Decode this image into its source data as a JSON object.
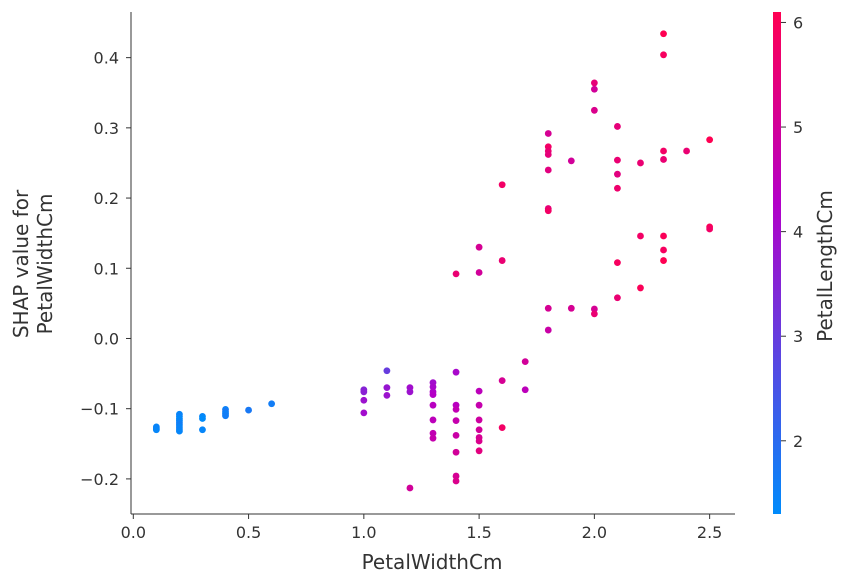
{
  "chart_data": {
    "type": "scatter",
    "title": "",
    "xlabel": "PetalWidthCm",
    "ylabel_lines": [
      "SHAP value for",
      "PetalWidthCm"
    ],
    "colorbar_label": "PetalLengthCm",
    "xlim": [
      -0.01,
      2.61
    ],
    "ylim": [
      -0.25,
      0.465
    ],
    "xticks": [
      "0.0",
      "0.5",
      "1.0",
      "1.5",
      "2.0",
      "2.5"
    ],
    "xtick_values": [
      0.0,
      0.5,
      1.0,
      1.5,
      2.0,
      2.5
    ],
    "yticks": [
      "−0.2",
      "−0.1",
      "0.0",
      "0.1",
      "0.2",
      "0.3",
      "0.4"
    ],
    "ytick_values": [
      -0.2,
      -0.1,
      0.0,
      0.1,
      0.2,
      0.3,
      0.4
    ],
    "colorbar_range": [
      1.3,
      6.1
    ],
    "colorbar_ticks": [
      "2",
      "3",
      "4",
      "5",
      "6"
    ],
    "colorbar_tick_values": [
      2,
      3,
      4,
      5,
      6
    ],
    "colormap": [
      "#008bfb",
      "#ff0052"
    ],
    "grid": false,
    "points": [
      {
        "x": 0.1,
        "y": -0.126,
        "c": 1.4
      },
      {
        "x": 0.1,
        "y": -0.128,
        "c": 1.5
      },
      {
        "x": 0.1,
        "y": -0.13,
        "c": 1.4
      },
      {
        "x": 0.2,
        "y": -0.108,
        "c": 1.4
      },
      {
        "x": 0.2,
        "y": -0.111,
        "c": 1.5
      },
      {
        "x": 0.2,
        "y": -0.114,
        "c": 1.3
      },
      {
        "x": 0.2,
        "y": -0.117,
        "c": 1.4
      },
      {
        "x": 0.2,
        "y": -0.12,
        "c": 1.5
      },
      {
        "x": 0.2,
        "y": -0.123,
        "c": 1.6
      },
      {
        "x": 0.2,
        "y": -0.126,
        "c": 1.4
      },
      {
        "x": 0.2,
        "y": -0.129,
        "c": 1.5
      },
      {
        "x": 0.2,
        "y": -0.132,
        "c": 1.4
      },
      {
        "x": 0.3,
        "y": -0.111,
        "c": 1.4
      },
      {
        "x": 0.3,
        "y": -0.114,
        "c": 1.3
      },
      {
        "x": 0.3,
        "y": -0.13,
        "c": 1.4
      },
      {
        "x": 0.4,
        "y": -0.101,
        "c": 1.5
      },
      {
        "x": 0.4,
        "y": -0.104,
        "c": 1.7
      },
      {
        "x": 0.4,
        "y": -0.107,
        "c": 1.5
      },
      {
        "x": 0.4,
        "y": -0.11,
        "c": 1.6
      },
      {
        "x": 0.5,
        "y": -0.102,
        "c": 1.7
      },
      {
        "x": 0.6,
        "y": -0.093,
        "c": 1.6
      },
      {
        "x": 1.0,
        "y": -0.073,
        "c": 3.5
      },
      {
        "x": 1.0,
        "y": -0.076,
        "c": 3.6
      },
      {
        "x": 1.0,
        "y": -0.088,
        "c": 3.9
      },
      {
        "x": 1.0,
        "y": -0.106,
        "c": 4.0
      },
      {
        "x": 1.1,
        "y": -0.046,
        "c": 3.0
      },
      {
        "x": 1.1,
        "y": -0.07,
        "c": 3.8
      },
      {
        "x": 1.1,
        "y": -0.081,
        "c": 3.9
      },
      {
        "x": 1.2,
        "y": -0.07,
        "c": 4.0
      },
      {
        "x": 1.2,
        "y": -0.076,
        "c": 3.9
      },
      {
        "x": 1.2,
        "y": -0.213,
        "c": 5.0
      },
      {
        "x": 1.3,
        "y": -0.063,
        "c": 4.0
      },
      {
        "x": 1.3,
        "y": -0.069,
        "c": 4.1
      },
      {
        "x": 1.3,
        "y": -0.076,
        "c": 4.2
      },
      {
        "x": 1.3,
        "y": -0.08,
        "c": 4.3
      },
      {
        "x": 1.3,
        "y": -0.095,
        "c": 4.4
      },
      {
        "x": 1.3,
        "y": -0.116,
        "c": 4.5
      },
      {
        "x": 1.3,
        "y": -0.135,
        "c": 4.6
      },
      {
        "x": 1.3,
        "y": -0.142,
        "c": 4.7
      },
      {
        "x": 1.4,
        "y": 0.092,
        "c": 5.6
      },
      {
        "x": 1.4,
        "y": -0.048,
        "c": 4.1
      },
      {
        "x": 1.4,
        "y": -0.095,
        "c": 4.4
      },
      {
        "x": 1.4,
        "y": -0.101,
        "c": 4.6
      },
      {
        "x": 1.4,
        "y": -0.117,
        "c": 4.7
      },
      {
        "x": 1.4,
        "y": -0.138,
        "c": 4.8
      },
      {
        "x": 1.4,
        "y": -0.162,
        "c": 5.0
      },
      {
        "x": 1.4,
        "y": -0.196,
        "c": 5.1
      },
      {
        "x": 1.4,
        "y": -0.203,
        "c": 5.2
      },
      {
        "x": 1.5,
        "y": 0.13,
        "c": 5.1
      },
      {
        "x": 1.5,
        "y": 0.094,
        "c": 5.0
      },
      {
        "x": 1.5,
        "y": -0.075,
        "c": 4.5
      },
      {
        "x": 1.5,
        "y": -0.095,
        "c": 4.7
      },
      {
        "x": 1.5,
        "y": -0.116,
        "c": 4.9
      },
      {
        "x": 1.5,
        "y": -0.13,
        "c": 5.0
      },
      {
        "x": 1.5,
        "y": -0.141,
        "c": 5.1
      },
      {
        "x": 1.5,
        "y": -0.146,
        "c": 5.2
      },
      {
        "x": 1.5,
        "y": -0.16,
        "c": 5.4
      },
      {
        "x": 1.6,
        "y": 0.219,
        "c": 5.8
      },
      {
        "x": 1.6,
        "y": 0.111,
        "c": 5.6
      },
      {
        "x": 1.6,
        "y": -0.06,
        "c": 5.1
      },
      {
        "x": 1.6,
        "y": -0.127,
        "c": 5.8
      },
      {
        "x": 1.7,
        "y": -0.033,
        "c": 5.0
      },
      {
        "x": 1.7,
        "y": -0.073,
        "c": 4.5
      },
      {
        "x": 1.8,
        "y": 0.292,
        "c": 5.1
      },
      {
        "x": 1.8,
        "y": 0.273,
        "c": 5.8
      },
      {
        "x": 1.8,
        "y": 0.267,
        "c": 5.6
      },
      {
        "x": 1.8,
        "y": 0.262,
        "c": 5.5
      },
      {
        "x": 1.8,
        "y": 0.24,
        "c": 5.4
      },
      {
        "x": 1.8,
        "y": 0.185,
        "c": 5.5
      },
      {
        "x": 1.8,
        "y": 0.182,
        "c": 5.8
      },
      {
        "x": 1.8,
        "y": 0.043,
        "c": 5.1
      },
      {
        "x": 1.8,
        "y": 0.012,
        "c": 4.8
      },
      {
        "x": 1.9,
        "y": 0.253,
        "c": 5.0
      },
      {
        "x": 1.9,
        "y": 0.043,
        "c": 5.1
      },
      {
        "x": 2.0,
        "y": 0.364,
        "c": 5.5
      },
      {
        "x": 2.0,
        "y": 0.355,
        "c": 5.0
      },
      {
        "x": 2.0,
        "y": 0.325,
        "c": 5.2
      },
      {
        "x": 2.0,
        "y": 0.042,
        "c": 5.1
      },
      {
        "x": 2.0,
        "y": 0.035,
        "c": 5.6
      },
      {
        "x": 2.1,
        "y": 0.302,
        "c": 5.5
      },
      {
        "x": 2.1,
        "y": 0.254,
        "c": 5.6
      },
      {
        "x": 2.1,
        "y": 0.234,
        "c": 5.4
      },
      {
        "x": 2.1,
        "y": 0.214,
        "c": 5.7
      },
      {
        "x": 2.1,
        "y": 0.108,
        "c": 5.9
      },
      {
        "x": 2.1,
        "y": 0.058,
        "c": 5.6
      },
      {
        "x": 2.2,
        "y": 0.25,
        "c": 5.6
      },
      {
        "x": 2.2,
        "y": 0.146,
        "c": 5.8
      },
      {
        "x": 2.2,
        "y": 0.072,
        "c": 6.0
      },
      {
        "x": 2.3,
        "y": 0.434,
        "c": 6.1
      },
      {
        "x": 2.3,
        "y": 0.404,
        "c": 5.9
      },
      {
        "x": 2.3,
        "y": 0.267,
        "c": 5.8
      },
      {
        "x": 2.3,
        "y": 0.255,
        "c": 5.6
      },
      {
        "x": 2.3,
        "y": 0.146,
        "c": 6.0
      },
      {
        "x": 2.3,
        "y": 0.126,
        "c": 5.9
      },
      {
        "x": 2.3,
        "y": 0.111,
        "c": 6.1
      },
      {
        "x": 2.4,
        "y": 0.267,
        "c": 5.6
      },
      {
        "x": 2.5,
        "y": 0.283,
        "c": 6.1
      },
      {
        "x": 2.5,
        "y": 0.159,
        "c": 6.0
      },
      {
        "x": 2.5,
        "y": 0.156,
        "c": 5.8
      }
    ]
  }
}
